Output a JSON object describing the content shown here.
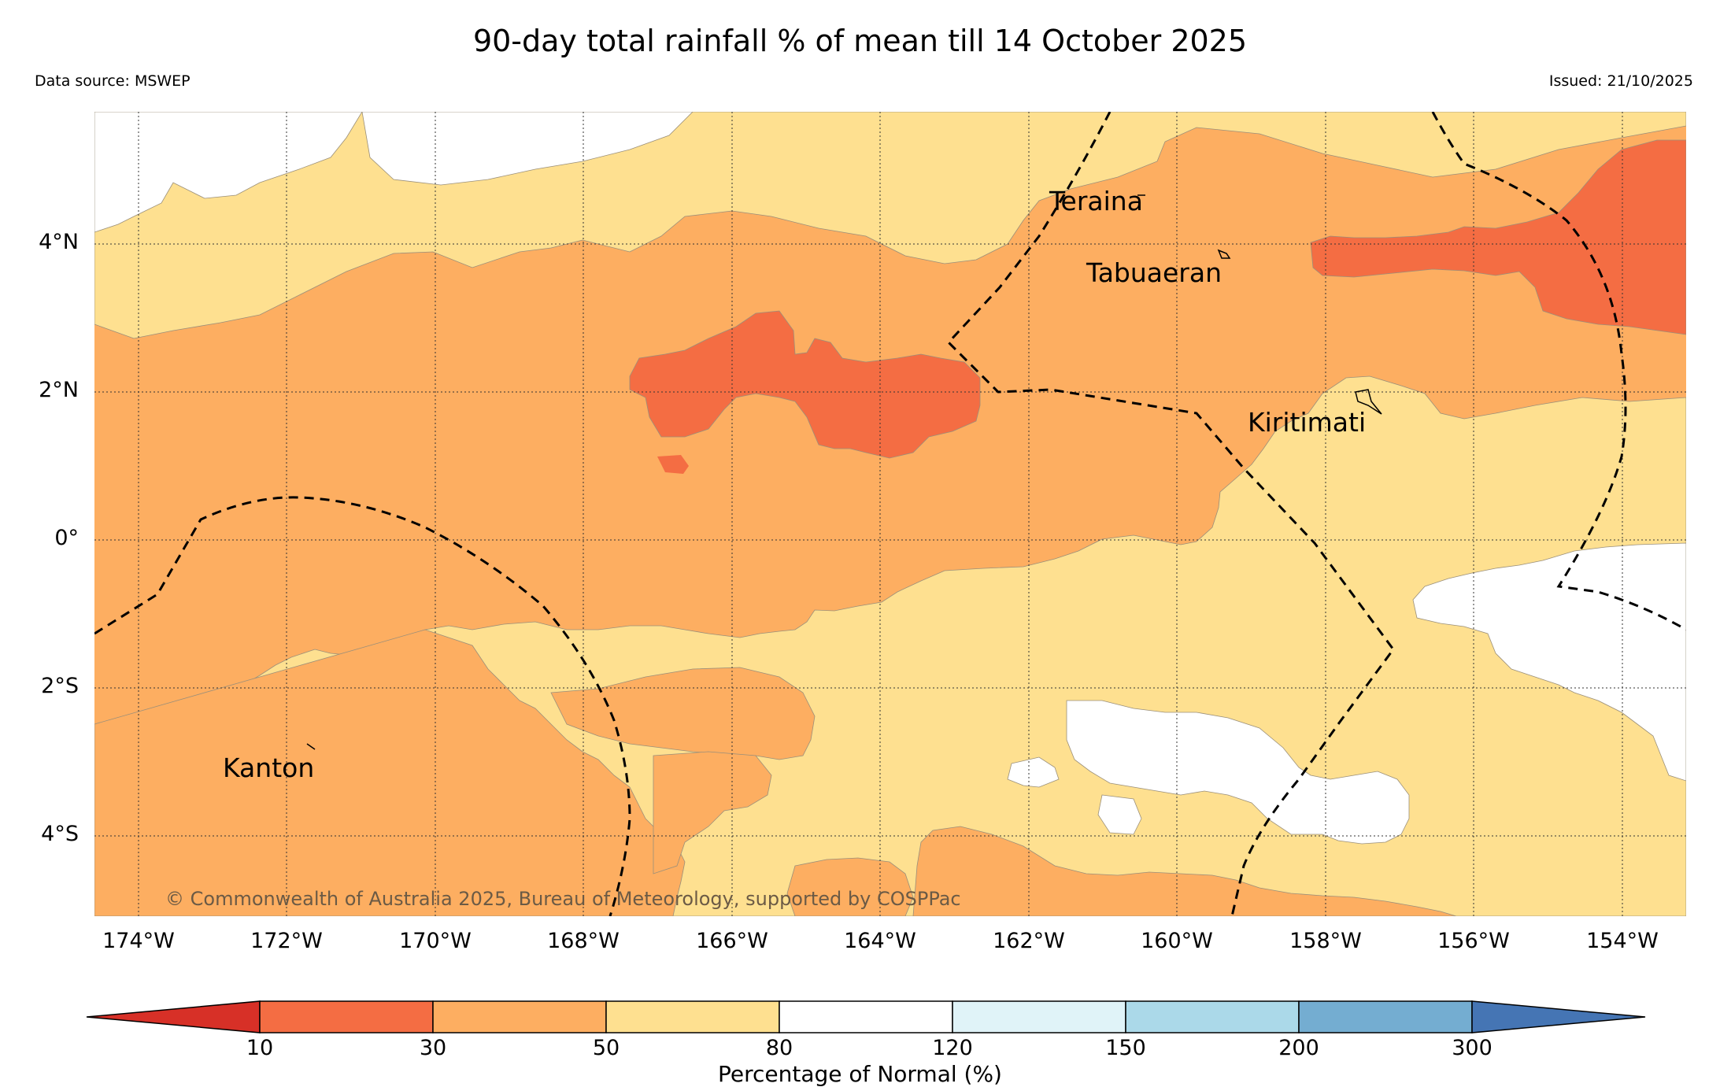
{
  "header": {
    "title": "90-day total rainfall % of mean till 14 October 2025",
    "data_source": "Data source: MSWEP",
    "issued": "Issued: 21/10/2025"
  },
  "axes": {
    "lat_labels": [
      "4°N",
      "2°N",
      "0°",
      "2°S",
      "4°S"
    ],
    "lon_labels": [
      "174°W",
      "172°W",
      "170°W",
      "168°W",
      "166°W",
      "164°W",
      "162°W",
      "160°W",
      "158°W",
      "156°W",
      "154°W"
    ]
  },
  "places": {
    "teraina": "Teraina",
    "tabuaeran": "Tabuaeran",
    "kiritimati": "Kiritimati",
    "kanton": "Kanton"
  },
  "copyright": "© Commonwealth of Australia 2025, Bureau of Meteorology, supported by COSPPac",
  "colorbar": {
    "label": "Percentage of Normal (%)",
    "ticks": [
      "10",
      "30",
      "50",
      "80",
      "120",
      "150",
      "200",
      "300"
    ],
    "colors": {
      "under": "#d73027",
      "c10_30": "#f46d43",
      "c30_50": "#fdae61",
      "c50_80": "#fee090",
      "c80_120": "#ffffff",
      "c120_150": "#e0f3f8",
      "c150_200": "#abd9e9",
      "c200_300": "#74add1",
      "over": "#4575b4"
    }
  }
}
